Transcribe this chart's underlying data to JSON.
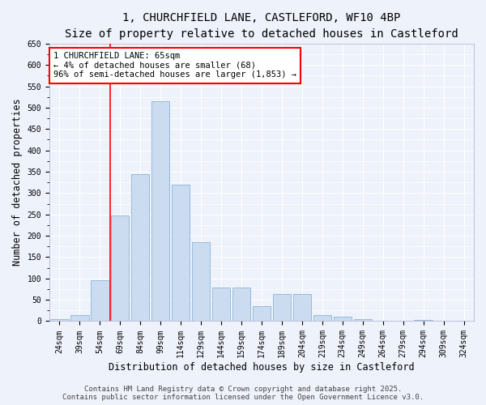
{
  "title_line1": "1, CHURCHFIELD LANE, CASTLEFORD, WF10 4BP",
  "title_line2": "Size of property relative to detached houses in Castleford",
  "xlabel": "Distribution of detached houses by size in Castleford",
  "ylabel": "Number of detached properties",
  "categories": [
    "24sqm",
    "39sqm",
    "54sqm",
    "69sqm",
    "84sqm",
    "99sqm",
    "114sqm",
    "129sqm",
    "144sqm",
    "159sqm",
    "174sqm",
    "189sqm",
    "204sqm",
    "219sqm",
    "234sqm",
    "249sqm",
    "264sqm",
    "279sqm",
    "294sqm",
    "309sqm",
    "324sqm"
  ],
  "values": [
    5,
    15,
    95,
    248,
    345,
    515,
    320,
    185,
    78,
    78,
    35,
    63,
    63,
    15,
    10,
    5,
    0,
    0,
    3,
    0,
    0
  ],
  "bar_color": "#ccdcf0",
  "bar_edge_color": "#8ab4d8",
  "vline_color": "red",
  "annotation_text": "1 CHURCHFIELD LANE: 65sqm\n← 4% of detached houses are smaller (68)\n96% of semi-detached houses are larger (1,853) →",
  "annotation_box_color": "white",
  "annotation_box_edge_color": "red",
  "ylim": [
    0,
    650
  ],
  "yticks": [
    0,
    50,
    100,
    150,
    200,
    250,
    300,
    350,
    400,
    450,
    500,
    550,
    600,
    650
  ],
  "footer_text": "Contains HM Land Registry data © Crown copyright and database right 2025.\nContains public sector information licensed under the Open Government Licence v3.0.",
  "bg_color": "#eef2fb",
  "grid_color": "#ffffff",
  "title_fontsize": 10,
  "subtitle_fontsize": 9,
  "axis_label_fontsize": 8.5,
  "tick_fontsize": 7,
  "footer_fontsize": 6.5,
  "annotation_fontsize": 7.5
}
